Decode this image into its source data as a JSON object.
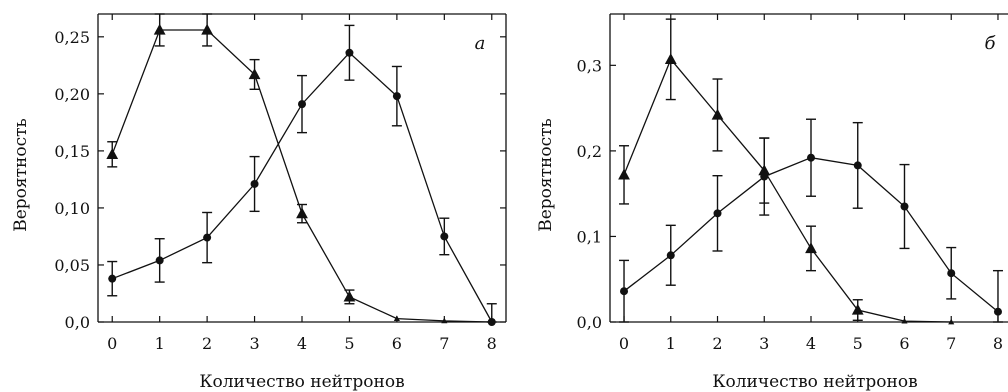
{
  "chart_data": [
    {
      "type": "line",
      "panel_label": "а",
      "xlabel": "Количество нейтронов",
      "ylabel": "Вероятность",
      "xlim": [
        -0.3,
        8.3
      ],
      "ylim": [
        0,
        0.27
      ],
      "x_ticks": [
        0,
        1,
        2,
        3,
        4,
        5,
        6,
        7,
        8
      ],
      "x_tick_labels": [
        "0",
        "1",
        "2",
        "3",
        "4",
        "5",
        "6",
        "7",
        "8"
      ],
      "y_ticks": [
        0,
        0.05,
        0.1,
        0.15,
        0.2,
        0.25
      ],
      "y_tick_labels": [
        "0,0",
        "0,05",
        "0,10",
        "0,15",
        "0,20",
        "0,25"
      ],
      "grid": false,
      "series": [
        {
          "marker": "triangle",
          "x": [
            0,
            1,
            2,
            3,
            4,
            5,
            6,
            7,
            8
          ],
          "y": [
            0.147,
            0.256,
            0.256,
            0.217,
            0.095,
            0.022,
            0.003,
            0.001,
            0.0
          ],
          "err": [
            0.011,
            0.014,
            0.014,
            0.013,
            0.008,
            0.006,
            0,
            0,
            0
          ]
        },
        {
          "marker": "circle",
          "x": [
            0,
            1,
            2,
            3,
            4,
            5,
            6,
            7,
            8
          ],
          "y": [
            0.038,
            0.054,
            0.074,
            0.121,
            0.191,
            0.236,
            0.198,
            0.075,
            0.0
          ],
          "err": [
            0.015,
            0.019,
            0.022,
            0.024,
            0.025,
            0.024,
            0.026,
            0.016,
            0.016
          ]
        }
      ]
    },
    {
      "type": "line",
      "panel_label": "б",
      "xlabel": "Количество нейтронов",
      "ylabel": "Вероятность",
      "xlim": [
        -0.3,
        8.3
      ],
      "ylim": [
        0,
        0.36
      ],
      "x_ticks": [
        0,
        1,
        2,
        3,
        4,
        5,
        6,
        7,
        8
      ],
      "x_tick_labels": [
        "0",
        "1",
        "2",
        "3",
        "4",
        "5",
        "6",
        "7",
        "8"
      ],
      "y_ticks": [
        0,
        0.1,
        0.2,
        0.3
      ],
      "y_tick_labels": [
        "0,0",
        "0,1",
        "0,2",
        "0,3"
      ],
      "grid": false,
      "series": [
        {
          "marker": "triangle",
          "x": [
            0,
            1,
            2,
            3,
            4,
            5,
            6,
            7
          ],
          "y": [
            0.172,
            0.307,
            0.242,
            0.177,
            0.086,
            0.014,
            0.001,
            0.0
          ],
          "err": [
            0.034,
            0.047,
            0.042,
            0.038,
            0.026,
            0.012,
            0,
            0
          ]
        },
        {
          "marker": "circle",
          "x": [
            0,
            1,
            2,
            3,
            4,
            5,
            6,
            7,
            8
          ],
          "y": [
            0.036,
            0.078,
            0.127,
            0.17,
            0.192,
            0.183,
            0.135,
            0.057,
            0.012
          ],
          "err": [
            0.036,
            0.035,
            0.044,
            0.045,
            0.045,
            0.05,
            0.049,
            0.03,
            0.048
          ]
        }
      ]
    }
  ]
}
